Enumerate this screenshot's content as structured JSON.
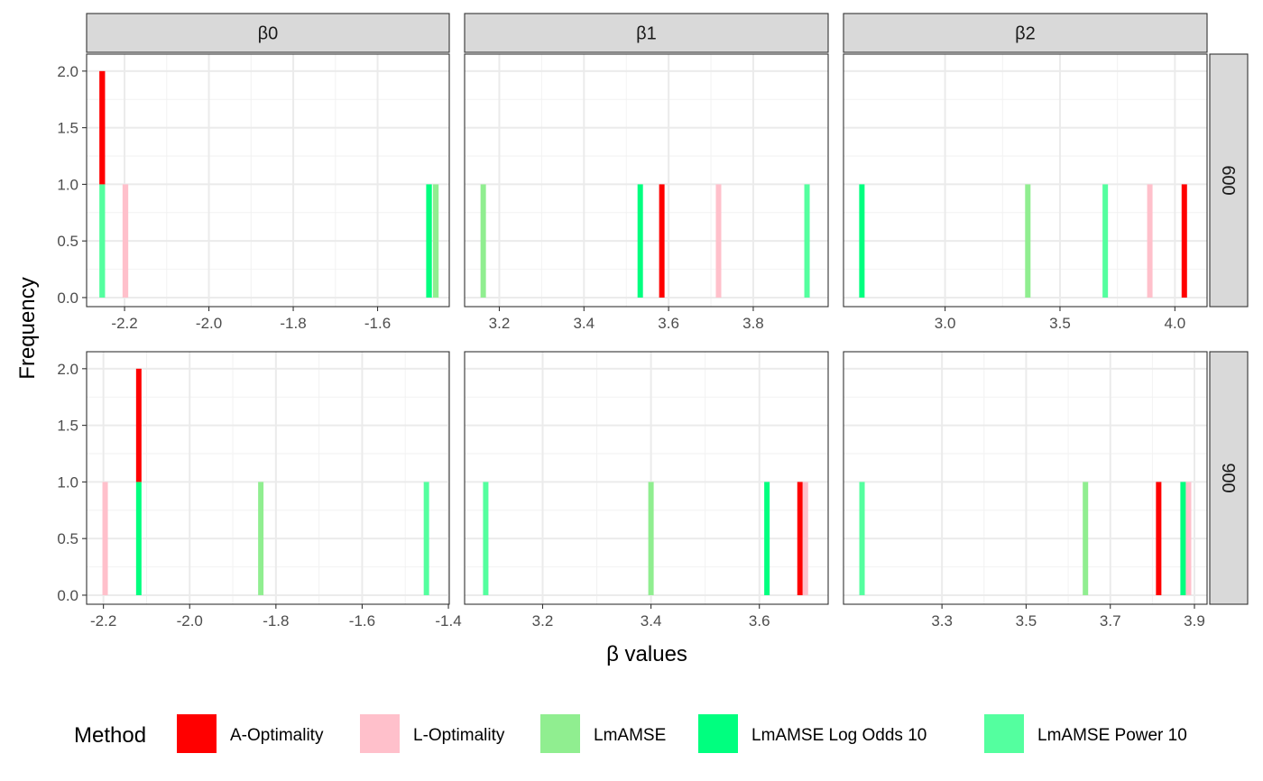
{
  "chart_data": {
    "type": "bar",
    "subtype": "faceted-histogram",
    "xlabel": "β values",
    "ylabel": "Frequency",
    "legend": {
      "title": "Method",
      "placement": "bottom",
      "entries": [
        {
          "name": "A-Optimality",
          "color": "#FF0000"
        },
        {
          "name": "L-Optimality",
          "color": "#FFC0CB"
        },
        {
          "name": "LmAMSE",
          "color": "#90EE90"
        },
        {
          "name": "LmAMSE Log Odds 10",
          "color": "#00FF7F"
        },
        {
          "name": "LmAMSE Power 10",
          "color": "#54FF9F"
        }
      ]
    },
    "grid": true,
    "facet_columns": [
      "β0",
      "β1",
      "β2"
    ],
    "facet_rows": [
      "600",
      "900"
    ],
    "y_ticks": [
      "0.0",
      "0.5",
      "1.0",
      "1.5",
      "2.0"
    ],
    "ylim": [
      -0.08,
      2.15
    ],
    "panels": [
      {
        "row": 0,
        "col": 0,
        "xlim": [
          -2.29,
          -1.43
        ],
        "x_ticks": [
          -2.2,
          -2.0,
          -1.8,
          -1.6
        ],
        "x_tick_labels": [
          "-2.2",
          "-2.0",
          "-1.8",
          "-1.6"
        ],
        "bin_width": 0.0135,
        "bars": [
          {
            "method": "LmAMSE Power 10",
            "x": -2.253,
            "count": 1
          },
          {
            "method": "A-Optimality",
            "x": -2.253,
            "count": 1
          },
          {
            "method": "L-Optimality",
            "x": -2.198,
            "count": 1
          },
          {
            "method": "LmAMSE Log Odds 10",
            "x": -1.478,
            "count": 1
          },
          {
            "method": "LmAMSE",
            "x": -1.462,
            "count": 1
          }
        ]
      },
      {
        "row": 0,
        "col": 1,
        "xlim": [
          3.118,
          3.977
        ],
        "x_ticks": [
          3.2,
          3.4,
          3.6,
          3.8
        ],
        "x_tick_labels": [
          "3.2",
          "3.4",
          "3.6",
          "3.8"
        ],
        "bin_width": 0.0128,
        "bars": [
          {
            "method": "LmAMSE",
            "x": 3.162,
            "count": 1
          },
          {
            "method": "LmAMSE Log Odds 10",
            "x": 3.533,
            "count": 1
          },
          {
            "method": "A-Optimality",
            "x": 3.584,
            "count": 1
          },
          {
            "method": "L-Optimality",
            "x": 3.718,
            "count": 1
          },
          {
            "method": "LmAMSE Power 10",
            "x": 3.927,
            "count": 1
          }
        ]
      },
      {
        "row": 0,
        "col": 2,
        "xlim": [
          2.558,
          4.14
        ],
        "x_ticks": [
          3.0,
          3.5,
          4.0
        ],
        "x_tick_labels": [
          "3.0",
          "3.5",
          "4.0"
        ],
        "bin_width": 0.0236,
        "bars": [
          {
            "method": "LmAMSE Log Odds 10",
            "x": 2.638,
            "count": 1
          },
          {
            "method": "LmAMSE",
            "x": 3.36,
            "count": 1
          },
          {
            "method": "LmAMSE Power 10",
            "x": 3.697,
            "count": 1
          },
          {
            "method": "L-Optimality",
            "x": 3.891,
            "count": 1
          },
          {
            "method": "A-Optimality",
            "x": 4.041,
            "count": 1
          }
        ]
      },
      {
        "row": 1,
        "col": 0,
        "xlim": [
          -2.239,
          -1.398
        ],
        "x_ticks": [
          -2.2,
          -2.0,
          -1.8,
          -1.6,
          -1.4
        ],
        "x_tick_labels": [
          "-2.2",
          "-2.0",
          "-1.8",
          "-1.6",
          "-1.4"
        ],
        "bin_width": 0.0125,
        "bars": [
          {
            "method": "L-Optimality",
            "x": -2.196,
            "count": 1
          },
          {
            "method": "LmAMSE Log Odds 10",
            "x": -2.118,
            "count": 1
          },
          {
            "method": "A-Optimality",
            "x": -2.118,
            "count": 1
          },
          {
            "method": "LmAMSE",
            "x": -1.835,
            "count": 1
          },
          {
            "method": "LmAMSE Power 10",
            "x": -1.451,
            "count": 1
          }
        ]
      },
      {
        "row": 1,
        "col": 1,
        "xlim": [
          3.056,
          3.727
        ],
        "x_ticks": [
          3.2,
          3.4,
          3.6
        ],
        "x_tick_labels": [
          "3.2",
          "3.4",
          "3.6"
        ],
        "bin_width": 0.01,
        "bars": [
          {
            "method": "LmAMSE Power 10",
            "x": 3.095,
            "count": 1
          },
          {
            "method": "LmAMSE",
            "x": 3.4,
            "count": 1
          },
          {
            "method": "LmAMSE Log Odds 10",
            "x": 3.614,
            "count": 1
          },
          {
            "method": "A-Optimality",
            "x": 3.675,
            "count": 1
          },
          {
            "method": "L-Optimality",
            "x": 3.685,
            "count": 1
          }
        ]
      },
      {
        "row": 1,
        "col": 2,
        "xlim": [
          3.066,
          3.93
        ],
        "x_ticks": [
          3.3,
          3.5,
          3.7,
          3.9
        ],
        "x_tick_labels": [
          "3.3",
          "3.5",
          "3.7",
          "3.9"
        ],
        "bin_width": 0.0129,
        "bars": [
          {
            "method": "LmAMSE Power 10",
            "x": 3.11,
            "count": 1
          },
          {
            "method": "LmAMSE",
            "x": 3.641,
            "count": 1
          },
          {
            "method": "A-Optimality",
            "x": 3.815,
            "count": 1
          },
          {
            "method": "LmAMSE Log Odds 10",
            "x": 3.873,
            "count": 1
          },
          {
            "method": "L-Optimality",
            "x": 3.886,
            "count": 1
          }
        ]
      }
    ]
  }
}
